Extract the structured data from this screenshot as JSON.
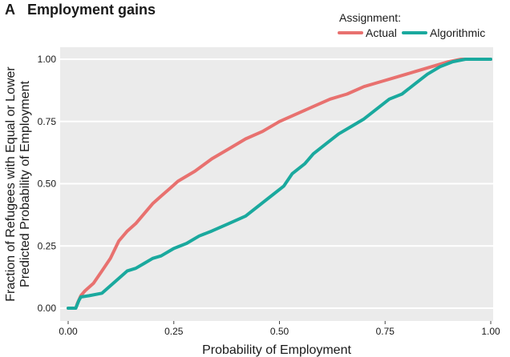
{
  "chart_data": {
    "type": "line",
    "panel_letter": "A",
    "title": "Employment gains",
    "xlabel": "Probability of Employment",
    "ylabel_lines": [
      "Fraction of Refugees with Equal or Lower",
      "Predicted Probability of Employment"
    ],
    "xlim": [
      0,
      1
    ],
    "ylim": [
      0,
      1
    ],
    "x_ticks": [
      "0.00",
      "0.25",
      "0.50",
      "0.75",
      "1.00"
    ],
    "y_ticks": [
      "0.00",
      "0.25",
      "0.50",
      "0.75",
      "1.00"
    ],
    "grid": true,
    "legend_title": "Assignment:",
    "legend_position": "top-right",
    "series": [
      {
        "name": "Actual",
        "color": "#e8716f",
        "points": [
          [
            0,
            0
          ],
          [
            0.018,
            0.0
          ],
          [
            0.022,
            0.02
          ],
          [
            0.03,
            0.05
          ],
          [
            0.04,
            0.07
          ],
          [
            0.06,
            0.1
          ],
          [
            0.08,
            0.15
          ],
          [
            0.1,
            0.2
          ],
          [
            0.12,
            0.27
          ],
          [
            0.14,
            0.31
          ],
          [
            0.16,
            0.34
          ],
          [
            0.18,
            0.38
          ],
          [
            0.2,
            0.42
          ],
          [
            0.22,
            0.45
          ],
          [
            0.24,
            0.48
          ],
          [
            0.26,
            0.51
          ],
          [
            0.3,
            0.55
          ],
          [
            0.34,
            0.6
          ],
          [
            0.38,
            0.64
          ],
          [
            0.42,
            0.68
          ],
          [
            0.46,
            0.71
          ],
          [
            0.5,
            0.75
          ],
          [
            0.54,
            0.78
          ],
          [
            0.58,
            0.81
          ],
          [
            0.62,
            0.84
          ],
          [
            0.66,
            0.86
          ],
          [
            0.7,
            0.89
          ],
          [
            0.74,
            0.91
          ],
          [
            0.78,
            0.93
          ],
          [
            0.82,
            0.95
          ],
          [
            0.86,
            0.97
          ],
          [
            0.9,
            0.99
          ],
          [
            0.93,
            1.0
          ],
          [
            1.0,
            1.0
          ]
        ]
      },
      {
        "name": "Algorithmic",
        "color": "#1aa99e",
        "points": [
          [
            0,
            0
          ],
          [
            0.018,
            0.0
          ],
          [
            0.025,
            0.03
          ],
          [
            0.03,
            0.045
          ],
          [
            0.05,
            0.05
          ],
          [
            0.08,
            0.06
          ],
          [
            0.1,
            0.09
          ],
          [
            0.12,
            0.12
          ],
          [
            0.14,
            0.15
          ],
          [
            0.16,
            0.16
          ],
          [
            0.18,
            0.18
          ],
          [
            0.2,
            0.2
          ],
          [
            0.22,
            0.21
          ],
          [
            0.25,
            0.24
          ],
          [
            0.28,
            0.26
          ],
          [
            0.31,
            0.29
          ],
          [
            0.34,
            0.31
          ],
          [
            0.38,
            0.34
          ],
          [
            0.42,
            0.37
          ],
          [
            0.45,
            0.41
          ],
          [
            0.48,
            0.45
          ],
          [
            0.51,
            0.49
          ],
          [
            0.53,
            0.54
          ],
          [
            0.56,
            0.58
          ],
          [
            0.58,
            0.62
          ],
          [
            0.61,
            0.66
          ],
          [
            0.64,
            0.7
          ],
          [
            0.67,
            0.73
          ],
          [
            0.7,
            0.76
          ],
          [
            0.73,
            0.8
          ],
          [
            0.76,
            0.84
          ],
          [
            0.79,
            0.86
          ],
          [
            0.82,
            0.9
          ],
          [
            0.85,
            0.94
          ],
          [
            0.88,
            0.97
          ],
          [
            0.91,
            0.99
          ],
          [
            0.94,
            1.0
          ],
          [
            1.0,
            1.0
          ]
        ]
      }
    ]
  }
}
